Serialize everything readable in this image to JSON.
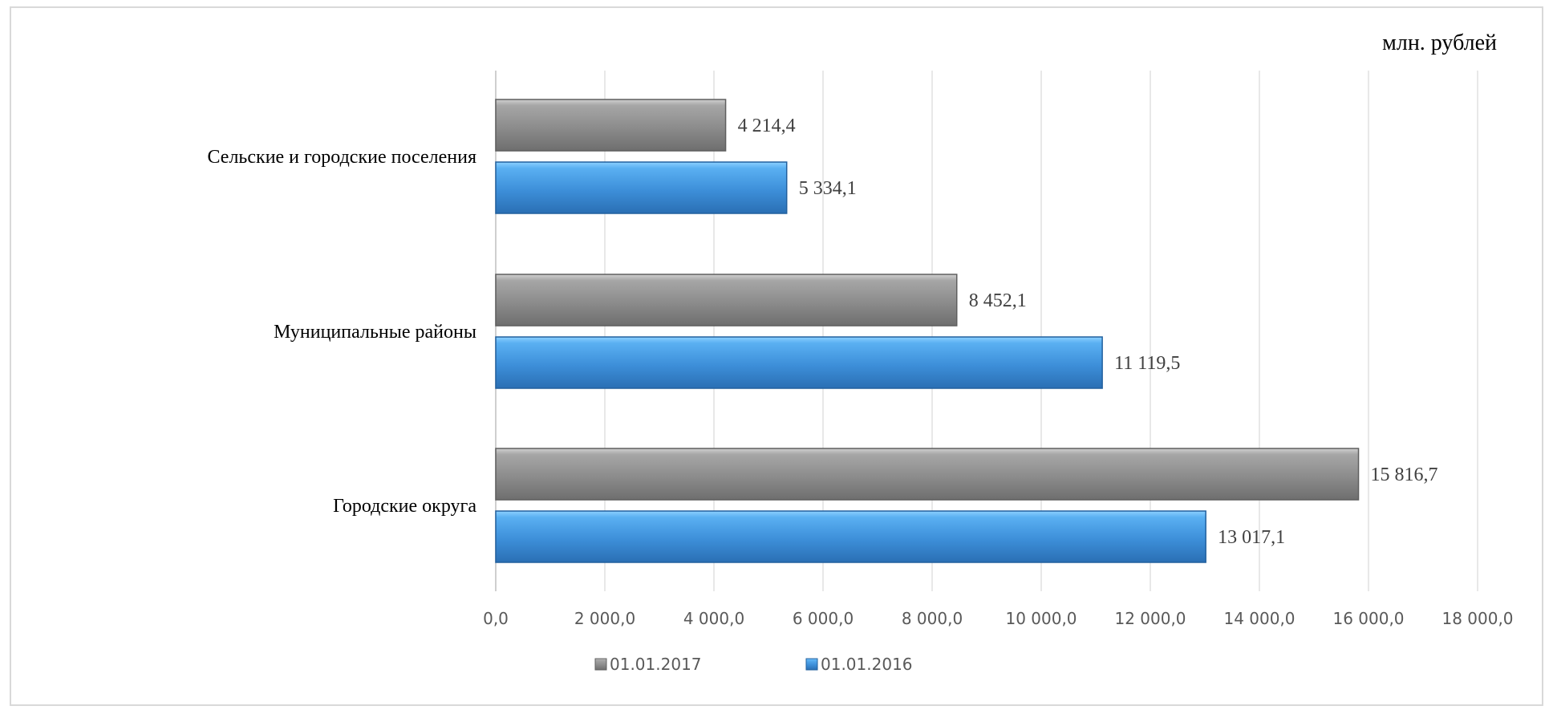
{
  "chart_data": {
    "type": "bar",
    "orientation": "horizontal",
    "unit": "млн. рублей",
    "categories": [
      "Сельские и городские поселения",
      "Муниципальные районы",
      "Городские округа"
    ],
    "series": [
      {
        "name": "01.01.2017",
        "values": [
          4214.4,
          8452.1,
          15816.7
        ],
        "value_labels": [
          "4 214,4",
          "8 452,1",
          "15 816,7"
        ],
        "color": "#8c8c8c"
      },
      {
        "name": "01.01.2016",
        "values": [
          5334.1,
          11119.5,
          13017.1
        ],
        "value_labels": [
          "5 334,1",
          "11 119,5",
          "13 017,1"
        ],
        "color": "#3d8fd9"
      }
    ],
    "xlim": [
      0,
      18000
    ],
    "ticks": [
      0,
      2000,
      4000,
      6000,
      8000,
      10000,
      12000,
      14000,
      16000,
      18000
    ],
    "tick_labels": [
      "0,0",
      "2 000,0",
      "4 000,0",
      "6 000,0",
      "8 000,0",
      "10 000,0",
      "12 000,0",
      "14 000,0",
      "16 000,0",
      "18 000,0"
    ],
    "grid": true,
    "legend_position": "bottom"
  }
}
